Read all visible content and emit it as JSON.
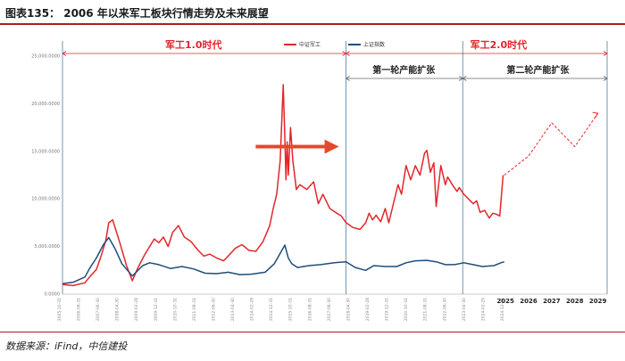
{
  "header": {
    "title": "图表135： 2006 年以来军工板块行情走势及未来展望"
  },
  "footer": {
    "source": "数据来源：iFind，中信建投"
  },
  "chart_data": {
    "type": "line",
    "y_ticks": [
      "0.0000",
      "5,000.0000",
      "10,000.0000",
      "15,000.0000",
      "20,000.0000",
      "25,000.0000"
    ],
    "ylim": [
      0,
      25000
    ],
    "xlim": [
      2005.83,
      2029.4
    ],
    "legend_position": "top",
    "grid": false,
    "x_tick_labels": [
      "2005-10-31",
      "2006-08-31",
      "2007-06-30",
      "2008-04-30",
      "2009-02-28",
      "2009-12-31",
      "2010-10-31",
      "2011-08-31",
      "2012-06-30",
      "2013-04-30",
      "2014-02-28",
      "2014-12-31",
      "2015-10-31",
      "2016-08-31",
      "2017-06-30",
      "2018-04-30",
      "2019-02-28",
      "2019-12-31",
      "2020-10-31",
      "2021-08-31",
      "2022-06-30",
      "2023-04-30",
      "2024-02-29",
      "2024-12-31"
    ],
    "forecast_year_labels": [
      "2025",
      "2026",
      "2027",
      "2028",
      "2029"
    ],
    "eras": [
      {
        "label": "军工1.0时代",
        "start": 2005.83,
        "end": 2018.1,
        "label_at": 2011.5,
        "style": "red"
      },
      {
        "label": "军工2.0时代",
        "start": 2018.1,
        "end": 2029.4,
        "label_at": 2024.7,
        "style": "red"
      },
      {
        "label": "第一轮产能扩张",
        "start": 2018.1,
        "end": 2023.15,
        "label_at": 2020.6,
        "style": "dark"
      },
      {
        "label": "第二轮产能扩张",
        "start": 2023.15,
        "end": 2029.4,
        "label_at": 2026.4,
        "style": "dark"
      }
    ],
    "series": [
      {
        "name": "中证军工",
        "color": "#e3262b",
        "x": [
          2005.83,
          2006.3,
          2006.8,
          2007.0,
          2007.3,
          2007.5,
          2007.7,
          2007.83,
          2008.0,
          2008.3,
          2008.6,
          2008.85,
          2009.1,
          2009.4,
          2009.6,
          2009.8,
          2010.0,
          2010.2,
          2010.4,
          2010.6,
          2010.85,
          2011.1,
          2011.4,
          2011.7,
          2011.95,
          2012.2,
          2012.5,
          2012.8,
          2013.0,
          2013.3,
          2013.6,
          2013.9,
          2014.2,
          2014.5,
          2014.8,
          2014.95,
          2015.1,
          2015.25,
          2015.38,
          2015.45,
          2015.5,
          2015.55,
          2015.6,
          2015.7,
          2015.8,
          2015.95,
          2016.1,
          2016.4,
          2016.7,
          2016.9,
          2017.1,
          2017.4,
          2017.7,
          2017.9,
          2018.1,
          2018.4,
          2018.7,
          2018.95,
          2019.1,
          2019.25,
          2019.4,
          2019.6,
          2019.8,
          2019.95,
          2020.15,
          2020.35,
          2020.5,
          2020.7,
          2020.9,
          2021.1,
          2021.3,
          2021.5,
          2021.6,
          2021.75,
          2021.9,
          2022.0,
          2022.2,
          2022.4,
          2022.5,
          2022.7,
          2022.9,
          2023.0,
          2023.2,
          2023.4,
          2023.6,
          2023.75,
          2023.9,
          2024.1,
          2024.3,
          2024.45,
          2024.6,
          2024.75,
          2024.9
        ],
        "y": [
          1000,
          900,
          1200,
          1800,
          2600,
          4000,
          5600,
          7500,
          7800,
          5500,
          3000,
          1400,
          2800,
          4200,
          5000,
          5800,
          5400,
          6000,
          5000,
          6500,
          7200,
          6000,
          5500,
          4600,
          4000,
          4200,
          3800,
          3500,
          4000,
          4800,
          5200,
          4600,
          4500,
          5500,
          7200,
          9000,
          10500,
          14000,
          22000,
          16500,
          12000,
          16000,
          12500,
          17500,
          14000,
          11000,
          11500,
          11000,
          11800,
          9500,
          10500,
          9000,
          8500,
          8200,
          7500,
          7000,
          6800,
          7500,
          8500,
          7800,
          8300,
          7600,
          9000,
          7500,
          9500,
          11500,
          10500,
          13500,
          12000,
          13500,
          12500,
          14800,
          15100,
          12800,
          13800,
          9200,
          13500,
          11500,
          12300,
          11500,
          10800,
          11200,
          10500,
          10000,
          9500,
          9800,
          8600,
          8800,
          8000,
          8500,
          8400,
          8200,
          12500
        ]
      },
      {
        "name": "上证指数",
        "color": "#1f4e79",
        "x": [
          2005.83,
          2006.3,
          2006.8,
          2007.0,
          2007.3,
          2007.6,
          2007.83,
          2008.1,
          2008.4,
          2008.85,
          2009.3,
          2009.6,
          2010.0,
          2010.5,
          2011.0,
          2011.5,
          2012.0,
          2012.5,
          2013.0,
          2013.5,
          2014.0,
          2014.6,
          2015.0,
          2015.45,
          2015.6,
          2015.75,
          2016.0,
          2016.5,
          2017.0,
          2017.6,
          2018.1,
          2018.5,
          2018.95,
          2019.3,
          2019.8,
          2020.3,
          2020.7,
          2021.1,
          2021.6,
          2022.0,
          2022.4,
          2022.8,
          2023.2,
          2023.6,
          2024.0,
          2024.5,
          2024.8,
          2024.95
        ],
        "y": [
          1100,
          1250,
          1800,
          2700,
          3800,
          5200,
          5950,
          4800,
          3200,
          1900,
          3000,
          3300,
          3100,
          2700,
          2900,
          2650,
          2200,
          2150,
          2300,
          2050,
          2100,
          2300,
          3200,
          5150,
          3800,
          3200,
          2800,
          3000,
          3100,
          3300,
          3400,
          2800,
          2500,
          3000,
          2900,
          2900,
          3300,
          3500,
          3550,
          3400,
          3100,
          3100,
          3300,
          3100,
          2900,
          3000,
          3300,
          3400
        ]
      },
      {
        "name": "",
        "color": "#e3262b",
        "dashed": true,
        "x": [
          2024.95,
          2026.0,
          2027.0,
          2028.0,
          2029.0
        ],
        "y": [
          12500,
          14500,
          18000,
          15500,
          19000
        ]
      }
    ]
  }
}
